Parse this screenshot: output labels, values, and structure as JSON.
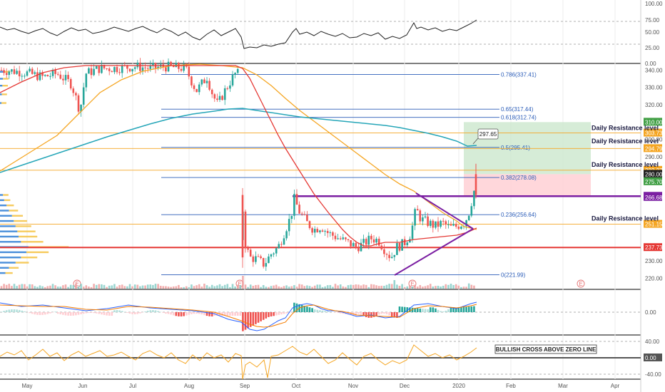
{
  "chart_data": {
    "type": "candlestick",
    "months": [
      "May",
      "Jun",
      "Jul",
      "Aug",
      "Sep",
      "Oct",
      "Nov",
      "Dec",
      "2020",
      "Feb",
      "Mar",
      "Apr"
    ],
    "price_axis": {
      "range": [
        214,
        343
      ],
      "ticks": [
        340,
        330,
        320,
        310,
        300,
        290,
        280,
        270,
        260,
        250,
        240,
        230,
        220
      ],
      "tick_labels": [
        "340.00",
        "330.00",
        "320.00",
        "",
        "300.00",
        "290.00",
        "",
        "",
        "",
        "",
        "",
        "230.00",
        "220.00"
      ]
    },
    "rsi_axis": {
      "ticks": [
        100,
        75,
        50,
        25,
        0
      ],
      "tick_labels": [
        "100.00",
        "75.00",
        "50.00",
        "25.00",
        "0.00"
      ]
    },
    "macd_axis": {
      "tick_labels": [
        "0.00"
      ]
    },
    "osc_axis": {
      "tick_labels": [
        "40.00",
        "0.00",
        "-40.00"
      ]
    },
    "fibonacci": [
      {
        "level": 0.786,
        "price": 337.41,
        "label": "0.786(337.41)"
      },
      {
        "level": 0.65,
        "price": 317.44,
        "label": "0.65(317.44)"
      },
      {
        "level": 0.618,
        "price": 312.74,
        "label": "0.618(312.74)"
      },
      {
        "level": 0.5,
        "price": 295.41,
        "label": "0.5(295.41)"
      },
      {
        "level": 0.382,
        "price": 278.08,
        "label": "0.382(278.08)"
      },
      {
        "level": 0.236,
        "price": 256.64,
        "label": "0.236(256.64)"
      },
      {
        "level": 0,
        "price": 221.99,
        "label": "0(221.99)"
      }
    ],
    "horizontal_levels": [
      {
        "price": 303.73,
        "color": "#f5a623",
        "tag": "303.73"
      },
      {
        "price": 294.79,
        "color": "#f5a623",
        "tag": "294.79"
      },
      {
        "price": 282.27,
        "color": "#f5a623",
        "tag": "282.27"
      },
      {
        "price": 267.3,
        "color": "#7b1fa2",
        "tag": "267.30"
      },
      {
        "price": 251.15,
        "color": "#f5a623",
        "tag": "251.15"
      },
      {
        "price": 237.73,
        "color": "#e53935",
        "tag": "237.73"
      }
    ],
    "price_tags": [
      {
        "price": 310.0,
        "text": "310.00",
        "bg": "#43a047",
        "fg": "#ffffff"
      },
      {
        "price": 280.0,
        "text": "280.00",
        "bg": "#222222",
        "fg": "#ffffff"
      },
      {
        "price": 275.7,
        "text": "275.70",
        "bg": "#43a047",
        "fg": "#ffffff"
      },
      {
        "price": 266.68,
        "text": "266.68",
        "bg": "#7b1fa2",
        "fg": "#ffffff"
      }
    ],
    "resistance_labels": [
      {
        "price": 304.5,
        "text": "Daily Resistance level"
      },
      {
        "price": 297.0,
        "text": "Daily Resistance level"
      },
      {
        "price": 283.5,
        "text": "Daily Resistance level"
      },
      {
        "price": 252.5,
        "text": "Daily Resistance level"
      }
    ],
    "callout": {
      "price": 297.65,
      "text": "297.65"
    },
    "annotation": "BULLISH CROSS ABOVE ZERO LINE",
    "earnings_marker": "E",
    "colors": {
      "up": "#26a69a",
      "down": "#ef5350",
      "ma_red": "#e53935",
      "ma_orange": "#f5a623",
      "ma_teal": "#26a6b8",
      "fib": "#2a5cb8",
      "purple": "#7b1fa2",
      "target_zone": "#c8e6c9",
      "stop_zone": "#ffcdd2"
    }
  }
}
